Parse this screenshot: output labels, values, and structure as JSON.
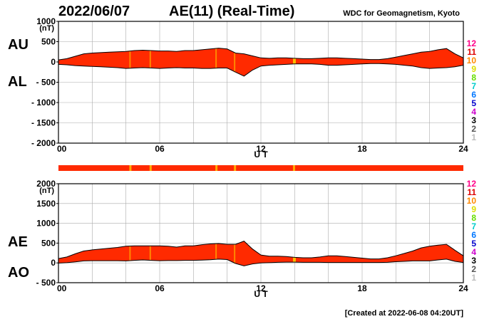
{
  "header": {
    "date": "2022/06/07",
    "title": "AE(11) (Real-Time)",
    "source": "WDC for Geomagnetism, Kyoto"
  },
  "footer": {
    "created": "[Created at 2022-06-08 04:20UT]"
  },
  "level_colors": {
    "fill_main": "#ff2a00",
    "fill_mid": "#ff8800",
    "fill_high": "#ffbb00"
  },
  "chart_data": [
    {
      "type": "area",
      "panel": "AU-AL",
      "label_upper": "AU",
      "label_lower": "AL",
      "unit": "(nT)",
      "xlabel": "U T",
      "xlim": [
        0,
        24
      ],
      "xticks": [
        0,
        6,
        12,
        18,
        24
      ],
      "xtick_labels": [
        "00",
        "06",
        "12",
        "18",
        "24"
      ],
      "ylim": [
        -2000,
        1000
      ],
      "yticks": [
        1000,
        500,
        0,
        -500,
        -1000,
        -1500,
        -2000
      ],
      "ytick_labels": [
        "1000",
        "500",
        "0",
        "- 500",
        "- 1000",
        "- 1500",
        "- 2000"
      ],
      "grid": true,
      "x_hours": [
        0,
        0.5,
        1,
        1.5,
        2,
        2.5,
        3,
        3.5,
        4,
        4.5,
        5,
        5.5,
        6,
        6.5,
        7,
        7.5,
        8,
        8.5,
        9,
        9.5,
        10,
        10.5,
        11,
        11.5,
        12,
        12.5,
        13,
        13.5,
        14,
        14.5,
        15,
        15.5,
        16,
        16.5,
        17,
        17.5,
        18,
        18.5,
        19,
        19.5,
        20,
        20.5,
        21,
        21.5,
        22,
        22.5,
        23,
        23.5,
        24
      ],
      "series": [
        {
          "name": "AU",
          "values": [
            50,
            80,
            140,
            200,
            220,
            230,
            240,
            250,
            260,
            280,
            290,
            280,
            270,
            270,
            260,
            280,
            280,
            300,
            320,
            340,
            320,
            220,
            200,
            150,
            100,
            90,
            100,
            100,
            90,
            80,
            80,
            90,
            100,
            100,
            90,
            80,
            70,
            60,
            60,
            80,
            120,
            160,
            200,
            240,
            260,
            300,
            330,
            200,
            100
          ]
        },
        {
          "name": "AL",
          "values": [
            -60,
            -70,
            -90,
            -100,
            -110,
            -120,
            -130,
            -140,
            -160,
            -150,
            -140,
            -150,
            -160,
            -150,
            -140,
            -150,
            -150,
            -160,
            -160,
            -150,
            -150,
            -250,
            -350,
            -200,
            -100,
            -80,
            -70,
            -60,
            -50,
            -50,
            -50,
            -60,
            -80,
            -80,
            -70,
            -60,
            -50,
            -40,
            -40,
            -50,
            -60,
            -80,
            -100,
            -140,
            -160,
            -150,
            -140,
            -120,
            -80
          ]
        }
      ]
    },
    {
      "type": "area",
      "panel": "AE-AO",
      "label_upper": "AE",
      "label_lower": "AO",
      "unit": "(nT)",
      "xlabel": "U T",
      "xlim": [
        0,
        24
      ],
      "xticks": [
        0,
        6,
        12,
        18,
        24
      ],
      "xtick_labels": [
        "00",
        "06",
        "12",
        "18",
        "24"
      ],
      "ylim": [
        -500,
        2000
      ],
      "yticks": [
        2000,
        1500,
        1000,
        500,
        0,
        -500
      ],
      "ytick_labels": [
        "2000",
        "1500",
        "1000",
        "500",
        "0",
        "- 500"
      ],
      "grid": true,
      "x_hours": [
        0,
        0.5,
        1,
        1.5,
        2,
        2.5,
        3,
        3.5,
        4,
        4.5,
        5,
        5.5,
        6,
        6.5,
        7,
        7.5,
        8,
        8.5,
        9,
        9.5,
        10,
        10.5,
        11,
        11.5,
        12,
        12.5,
        13,
        13.5,
        14,
        14.5,
        15,
        15.5,
        16,
        16.5,
        17,
        17.5,
        18,
        18.5,
        19,
        19.5,
        20,
        20.5,
        21,
        21.5,
        22,
        22.5,
        23,
        23.5,
        24
      ],
      "series": [
        {
          "name": "AE",
          "values": [
            110,
            150,
            230,
            300,
            330,
            350,
            370,
            390,
            420,
            430,
            430,
            430,
            430,
            420,
            400,
            430,
            430,
            460,
            480,
            490,
            470,
            470,
            550,
            350,
            200,
            170,
            170,
            160,
            140,
            130,
            130,
            150,
            180,
            180,
            160,
            140,
            120,
            100,
            100,
            130,
            180,
            240,
            300,
            380,
            420,
            450,
            470,
            320,
            180
          ]
        },
        {
          "name": "AO",
          "values": [
            -5,
            5,
            25,
            50,
            55,
            55,
            55,
            55,
            50,
            65,
            75,
            65,
            55,
            60,
            60,
            65,
            65,
            70,
            80,
            95,
            85,
            -15,
            -75,
            -25,
            0,
            5,
            15,
            20,
            20,
            15,
            15,
            15,
            10,
            10,
            10,
            10,
            10,
            10,
            10,
            15,
            30,
            40,
            50,
            50,
            50,
            75,
            95,
            40,
            10
          ]
        }
      ]
    }
  ],
  "legend": {
    "levels": [
      "12",
      "11",
      "10",
      "9",
      "8",
      "7",
      "6",
      "5",
      "4",
      "3",
      "2",
      "1"
    ],
    "colors": [
      "#ff0088",
      "#dd0000",
      "#ff8800",
      "#dddd00",
      "#66dd00",
      "#00cccc",
      "#0077ff",
      "#0000cc",
      "#cc00cc",
      "#000000",
      "#555555",
      "#bbbbbb"
    ]
  },
  "status_bar": {
    "highlight_hours": [
      4.2,
      5.4,
      9.3,
      10.4,
      13.9
    ],
    "highlight_color": "#ffaa00"
  }
}
